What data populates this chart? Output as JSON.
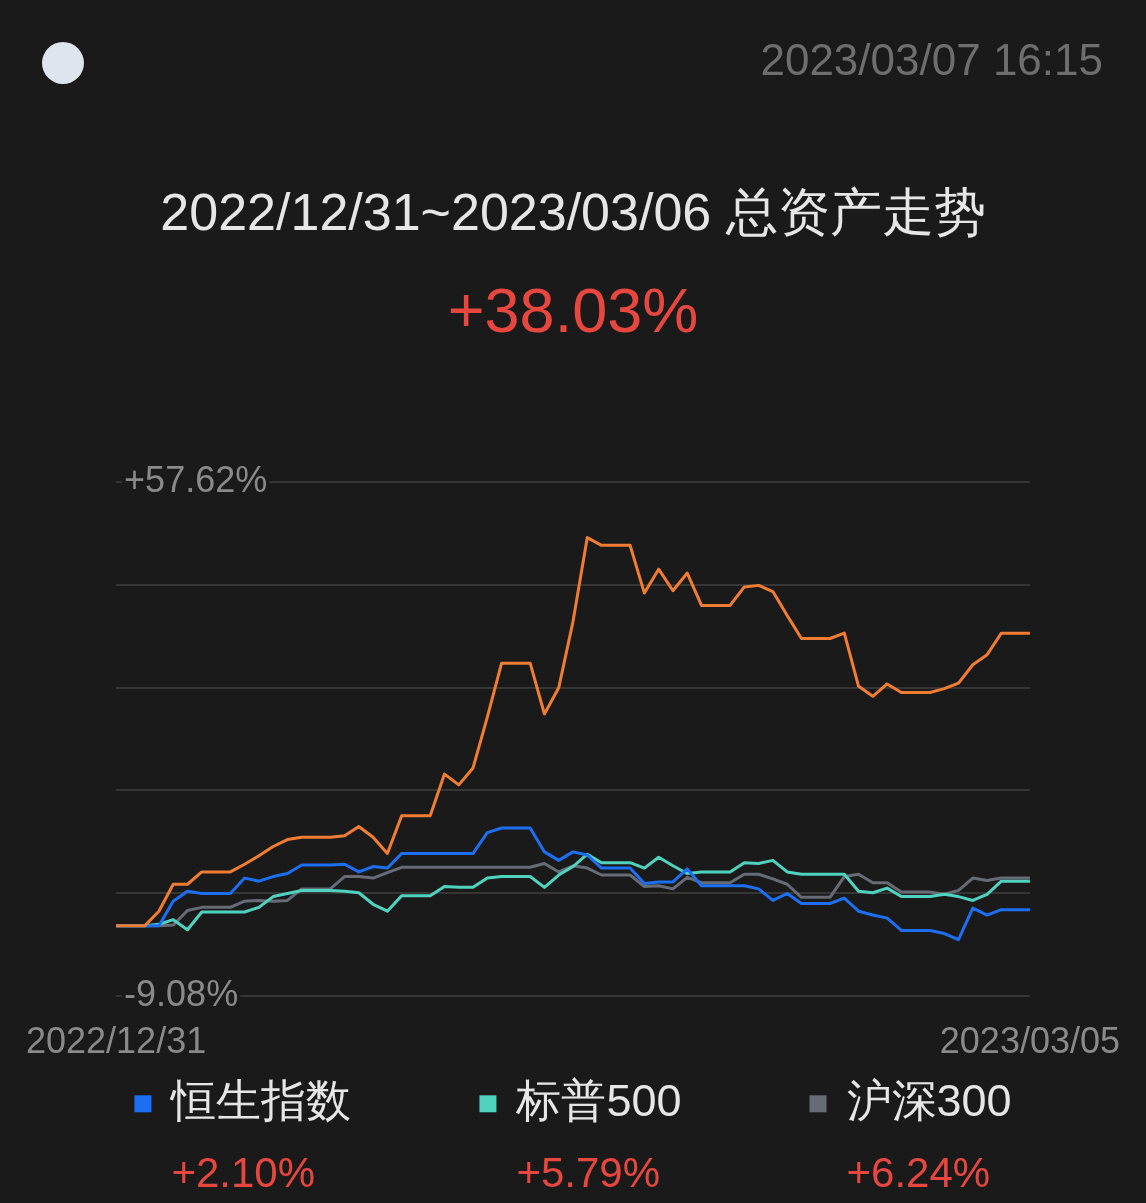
{
  "chart_data": {
    "type": "line",
    "title": "2022/12/31~2023/03/06 总资产走势",
    "subtitle": "+38.03%",
    "annotations": [
      "2023/03/07 16:15",
      "+2.10%",
      "+5.79%",
      "+6.24%"
    ],
    "x": [
      "2022-12-31",
      "2023-01-01",
      "2023-01-02",
      "2023-01-03",
      "2023-01-04",
      "2023-01-05",
      "2023-01-06",
      "2023-01-07",
      "2023-01-08",
      "2023-01-09",
      "2023-01-10",
      "2023-01-11",
      "2023-01-12",
      "2023-01-13",
      "2023-01-14",
      "2023-01-15",
      "2023-01-16",
      "2023-01-17",
      "2023-01-18",
      "2023-01-19",
      "2023-01-20",
      "2023-01-21",
      "2023-01-22",
      "2023-01-23",
      "2023-01-24",
      "2023-01-25",
      "2023-01-26",
      "2023-01-27",
      "2023-01-28",
      "2023-01-29",
      "2023-01-30",
      "2023-01-31",
      "2023-02-01",
      "2023-02-02",
      "2023-02-03",
      "2023-02-04",
      "2023-02-05",
      "2023-02-06",
      "2023-02-07",
      "2023-02-08",
      "2023-02-09",
      "2023-02-10",
      "2023-02-11",
      "2023-02-12",
      "2023-02-13",
      "2023-02-14",
      "2023-02-15",
      "2023-02-16",
      "2023-02-17",
      "2023-02-18",
      "2023-02-19",
      "2023-02-20",
      "2023-02-21",
      "2023-02-22",
      "2023-02-23",
      "2023-02-24",
      "2023-02-25",
      "2023-02-26",
      "2023-02-27",
      "2023-02-28",
      "2023-03-01",
      "2023-03-02",
      "2023-03-03",
      "2023-03-04",
      "2023-03-05"
    ],
    "series": [
      {
        "color": "#f07d32",
        "values": [
          0,
          0,
          0,
          1.9,
          5.4,
          5.4,
          7.0,
          7.0,
          7.0,
          8.0,
          9.1,
          10.3,
          11.2,
          11.5,
          11.5,
          11.5,
          11.7,
          12.9,
          11.5,
          9.4,
          14.3,
          14.3,
          14.3,
          19.7,
          18.3,
          20.5,
          27.1,
          34.1,
          34.1,
          34.1,
          27.5,
          30.9,
          39.5,
          50.4,
          49.4,
          49.4,
          49.4,
          43.2,
          46.3,
          43.5,
          45.8,
          41.6,
          41.6,
          41.6,
          44.0,
          44.2,
          43.4,
          40.3,
          37.3,
          37.3,
          37.3,
          38.0,
          31.1,
          29.8,
          31.4,
          30.3,
          30.3,
          30.3,
          30.8,
          31.5,
          33.9,
          35.2,
          38.0,
          38.0,
          38.0
        ]
      },
      {
        "name": "恒生指数",
        "color": "#1d6ff2",
        "values": [
          0,
          0,
          0,
          0,
          3.2,
          4.5,
          4.2,
          4.2,
          4.2,
          6.2,
          5.8,
          6.4,
          6.8,
          7.9,
          7.9,
          7.9,
          8.0,
          7.0,
          7.7,
          7.5,
          9.4,
          9.4,
          9.4,
          9.4,
          9.4,
          9.4,
          12.1,
          12.7,
          12.7,
          12.7,
          9.6,
          8.5,
          9.6,
          9.2,
          7.5,
          7.5,
          7.5,
          5.5,
          5.7,
          5.7,
          7.4,
          5.2,
          5.2,
          5.2,
          5.2,
          4.8,
          3.3,
          4.2,
          2.9,
          2.9,
          2.9,
          3.6,
          1.9,
          1.4,
          1.0,
          -0.6,
          -0.6,
          -0.6,
          -1.0,
          -1.8,
          2.3,
          1.4,
          2.1,
          2.1,
          2.1
        ]
      },
      {
        "name": "标普500",
        "color": "#4fd3bf",
        "values": [
          0,
          0,
          0,
          0.2,
          0.8,
          -0.5,
          1.8,
          1.8,
          1.8,
          1.8,
          2.4,
          3.8,
          4.2,
          4.6,
          4.6,
          4.6,
          4.5,
          4.3,
          2.8,
          1.9,
          3.9,
          3.9,
          3.9,
          5.1,
          5.0,
          5.0,
          6.2,
          6.4,
          6.4,
          6.4,
          5.0,
          6.6,
          7.7,
          9.3,
          8.2,
          8.2,
          8.2,
          7.5,
          8.9,
          7.8,
          6.8,
          7.0,
          7.0,
          7.0,
          8.2,
          8.1,
          8.5,
          7.0,
          6.7,
          6.7,
          6.7,
          6.7,
          4.5,
          4.3,
          4.9,
          3.8,
          3.8,
          3.8,
          4.1,
          3.8,
          3.3,
          4.1,
          5.8,
          5.8,
          5.8
        ]
      },
      {
        "name": "沪深300",
        "color": "#666b75",
        "values": [
          0,
          0,
          0,
          0,
          0.1,
          2.0,
          2.4,
          2.4,
          2.4,
          3.2,
          3.3,
          3.2,
          3.3,
          4.8,
          4.8,
          4.8,
          6.4,
          6.4,
          6.2,
          6.9,
          7.6,
          7.6,
          7.6,
          7.6,
          7.6,
          7.6,
          7.6,
          7.6,
          7.6,
          7.6,
          8.1,
          7.0,
          7.8,
          7.5,
          6.6,
          6.6,
          6.6,
          5.1,
          5.2,
          4.8,
          6.3,
          5.6,
          5.6,
          5.6,
          6.7,
          6.7,
          6.1,
          5.4,
          3.7,
          3.7,
          3.7,
          6.4,
          6.7,
          5.6,
          5.6,
          4.4,
          4.4,
          4.4,
          4.1,
          4.6,
          6.2,
          5.9,
          6.2,
          6.2,
          6.2
        ]
      }
    ],
    "xlim": [
      "2022-12-31",
      "2023-03-05"
    ],
    "xticks": [
      {
        "value": "2022-12-31",
        "label": "2022/12/31"
      },
      {
        "value": "2023-03-05",
        "label": "2023/03/05"
      }
    ],
    "ylim": [
      -9.08,
      57.62
    ],
    "yticks": [
      {
        "value": -9.08,
        "label": "-9.08%"
      },
      {
        "value": 4.26,
        "label": null
      },
      {
        "value": 17.6,
        "label": null
      },
      {
        "value": 30.94,
        "label": null
      },
      {
        "value": 44.28,
        "label": null
      },
      {
        "value": 57.62,
        "label": "+57.62%"
      }
    ],
    "grid": "y",
    "legend": "bottom",
    "marker": "none",
    "line_style": "solid"
  }
}
